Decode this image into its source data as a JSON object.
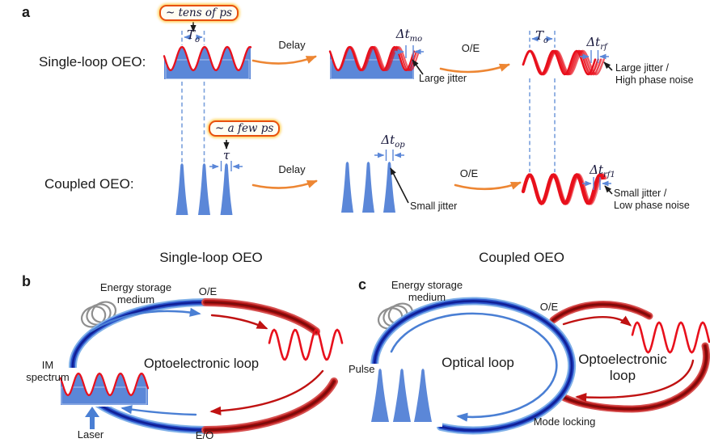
{
  "colors": {
    "wave_blue": "#5b87d8",
    "wave_red": "#e8101c",
    "orange": "#ed8633",
    "measure_blue": "#5b87d8",
    "dash_blue": "#7aa0dc",
    "ring_blue_dark": "#101f96",
    "ring_blue_mid": "#2c55cc",
    "ring_blue_light": "#7fb0e8",
    "ring_red_dark": "#7c0a0a",
    "ring_red_mid": "#b31515",
    "ring_red_light": "#d65050",
    "loop_arrow_blue": "#4a7fd4",
    "loop_arrow_red": "#c01212",
    "coil_gray": "#8f8f8f",
    "annotation_border": "#e8500e",
    "text": "#1a1a1a"
  },
  "panel_a": {
    "label": "a",
    "row1": {
      "title": "Single-loop OEO:",
      "annotation": "~ tens of ps",
      "period": {
        "main": "T",
        "sub": "o"
      },
      "delay": "Delay",
      "jitter_meas": {
        "main": "Δt",
        "sub": "mo"
      },
      "jitter_note": "Large jitter",
      "oe": "O/E",
      "period2": {
        "main": "T",
        "sub": "o"
      },
      "rf_meas": {
        "main": "Δt",
        "sub": "rf"
      },
      "result_line1": "Large jitter /",
      "result_line2": "High phase noise"
    },
    "row2": {
      "title": "Coupled OEO:",
      "annotation": "~ a few ps",
      "tau": {
        "main": "τ",
        "sub": ""
      },
      "delay": "Delay",
      "jitter_meas": {
        "main": "Δt",
        "sub": "op"
      },
      "jitter_note": "Small jitter",
      "oe": "O/E",
      "rf_meas": {
        "main": "Δt",
        "sub": "rf1"
      },
      "result_line1": "Small jitter /",
      "result_line2": "Low phase noise"
    }
  },
  "panel_b": {
    "label": "b",
    "title": "Single-loop OEO",
    "energy_line1": "Energy storage",
    "energy_line2": "medium",
    "oe": "O/E",
    "eo": "E/O",
    "loop": "Optoelectronic loop",
    "im_line1": "IM",
    "im_line2": "spectrum",
    "laser": "Laser"
  },
  "panel_c": {
    "label": "c",
    "title": "Coupled OEO",
    "energy_line1": "Energy storage",
    "energy_line2": "medium",
    "oe": "O/E",
    "optical_loop": "Optical loop",
    "oeo_line1": "Optoelectronic",
    "oeo_line2": "loop",
    "pulse": "Pulse",
    "mode_locking": "Mode locking"
  }
}
